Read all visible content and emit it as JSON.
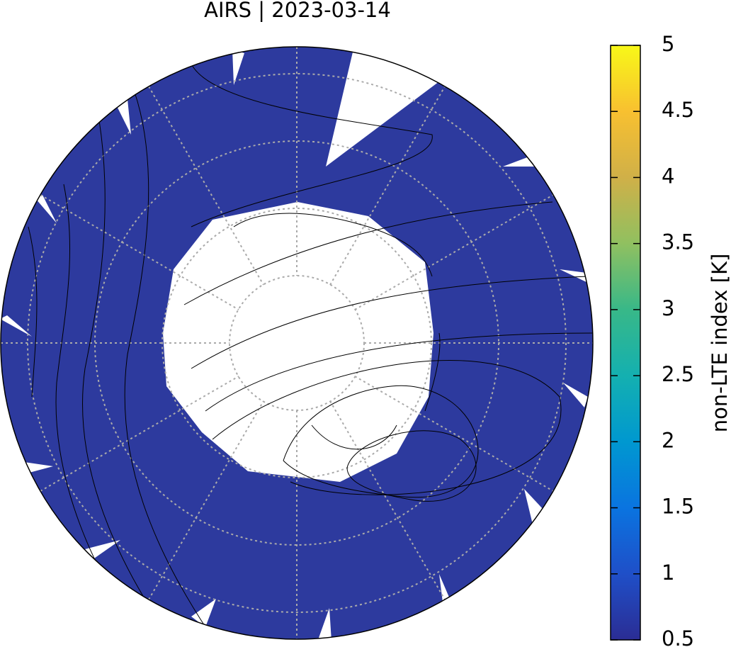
{
  "title": "AIRS | 2023-03-14",
  "colorbar": {
    "label": "non-LTE index [K]",
    "lim": [
      0.5,
      5
    ],
    "ticks": [
      0.5,
      1,
      1.5,
      2,
      2.5,
      3,
      3.5,
      4,
      4.5,
      5
    ],
    "colors": [
      "#2b2d94",
      "#1f4fc8",
      "#0a74e0",
      "#0098d0",
      "#14b0b0",
      "#38b888",
      "#90c060",
      "#d0b048",
      "#f8c030",
      "#f8f818"
    ]
  }
}
